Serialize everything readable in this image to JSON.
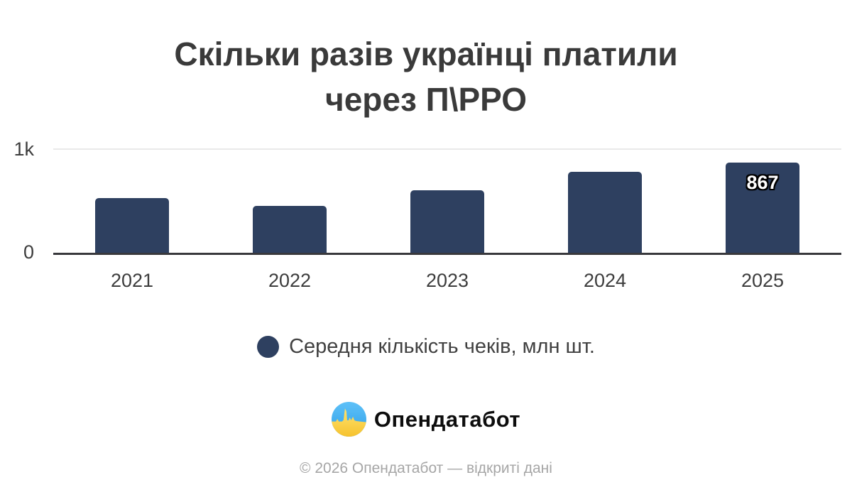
{
  "title": {
    "line1": "Скільки разів українці платили",
    "line2": "через П\\РРО"
  },
  "chart_data": {
    "type": "bar",
    "title": "Скільки разів українці платили через П\\РРО",
    "categories": [
      "2021",
      "2022",
      "2023",
      "2024",
      "2025"
    ],
    "series": [
      {
        "name": "Середня кількість чеків, млн шт.",
        "values": [
          530,
          455,
          605,
          780,
          867
        ]
      }
    ],
    "data_labels": [
      null,
      null,
      null,
      null,
      "867"
    ],
    "xlabel": "",
    "ylabel": "",
    "ylim": [
      0,
      1000
    ],
    "ytick_labels": [
      "0",
      "1k"
    ],
    "grid": "single light horizontal gridline at 1k; dark axis baseline at 0",
    "legend_position": "bottom-center",
    "bar_color": "#2e4060",
    "values_note": "only 2025 bar carries a printed value (867); other values estimated from bar heights"
  },
  "yaxis": {
    "tick_top": "1k",
    "tick_zero": "0"
  },
  "legend": {
    "label": "Середня кількість чеків, млн шт."
  },
  "branding": {
    "logo_text": "Опендатабот"
  },
  "footer": {
    "copyright": "© 2026 Опендатабот — відкриті дані"
  },
  "colors": {
    "bar": "#2e4060",
    "title_text": "#3a3a3a",
    "tick_text": "#3d3d3d",
    "gridline": "#e9e9e9",
    "axis_line": "#38383c",
    "bar_value_text": "#ffffff",
    "legend_text": "#414141",
    "footer_text": "#a6a6a6",
    "logo_blue": "#45b1f2",
    "logo_yellow": "#f9c93c"
  }
}
